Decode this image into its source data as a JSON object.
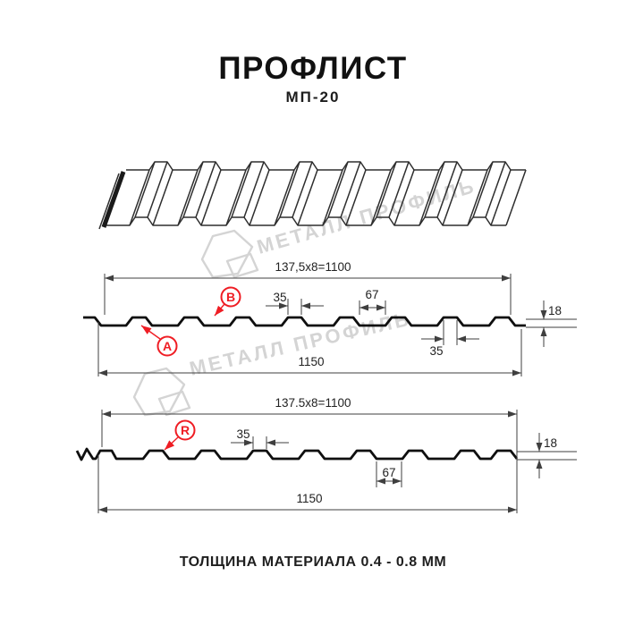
{
  "header": {
    "title": "ПРОФЛИСТ",
    "subtitle": "МП-20"
  },
  "footer": {
    "text": "ТОЛЩИНА МАТЕРИАЛА 0.4 - 0.8 ММ"
  },
  "watermark": {
    "text": "МЕТАЛЛ ПРОФИЛЬ",
    "color": "#d4d4d4"
  },
  "colors": {
    "accent_red": "#ef1d24",
    "drawing_line": "#3f3f3f",
    "profile_line": "#0f0f0f",
    "text": "#1f1f1f"
  },
  "drawing": {
    "section_a": {
      "coverage_width": "137,5x8=1100",
      "rib_top_width": "35",
      "valley_width": "67",
      "height": "18",
      "rib_bottom_width": "35",
      "total_width": "1150",
      "marker_a": "A",
      "marker_b": "B"
    },
    "section_r": {
      "coverage_width": "137.5x8=1100",
      "rib_top_width": "35",
      "valley_width": "67",
      "height": "18",
      "total_width": "1150",
      "marker_r": "R"
    }
  }
}
